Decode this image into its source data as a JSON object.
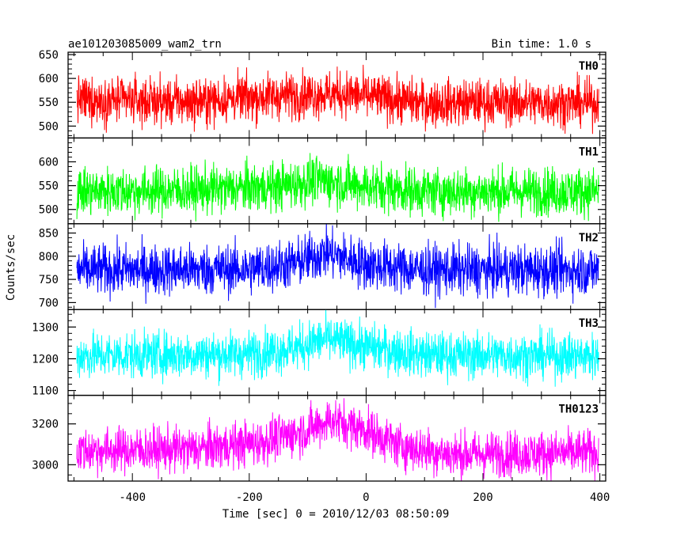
{
  "header": {
    "title": "ae101203085009_wam2_trn",
    "bin_time": "Bin time: 1.0 s"
  },
  "y_axis_label": "Counts/sec",
  "x_axis_label": "Time [sec] 0 = 2010/12/03 08:50:09",
  "chart_data": {
    "type": "line",
    "x_range": [
      -510,
      410
    ],
    "x_ticks": [
      -400,
      -200,
      0,
      200,
      400
    ],
    "x_minor_step": 50,
    "xlabel": "Time [sec] 0 = 2010/12/03 08:50:09",
    "ylabel": "Counts/sec",
    "bin_time_s": 1.0,
    "grid": false,
    "series": [
      {
        "name": "TH0",
        "color": "#ff0000",
        "ylim": [
          475,
          655
        ],
        "y_ticks": [
          500,
          550,
          600,
          650
        ],
        "minor_step": 10,
        "x_start": -495,
        "x_end": 398,
        "baseline": 555,
        "noise_sigma": 24,
        "trend": [
          {
            "x": -495,
            "y": 556
          },
          {
            "x": -300,
            "y": 550
          },
          {
            "x": -200,
            "y": 560
          },
          {
            "x": -100,
            "y": 566
          },
          {
            "x": -40,
            "y": 568
          },
          {
            "x": 100,
            "y": 548
          },
          {
            "x": 200,
            "y": 550
          },
          {
            "x": 398,
            "y": 548
          }
        ]
      },
      {
        "name": "TH1",
        "color": "#00ff00",
        "ylim": [
          470,
          650
        ],
        "y_ticks": [
          500,
          550,
          600
        ],
        "minor_step": 10,
        "x_start": -495,
        "x_end": 398,
        "baseline": 540,
        "noise_sigma": 25,
        "trend": [
          {
            "x": -495,
            "y": 538
          },
          {
            "x": -300,
            "y": 540
          },
          {
            "x": -150,
            "y": 548
          },
          {
            "x": -80,
            "y": 562
          },
          {
            "x": 0,
            "y": 548
          },
          {
            "x": 100,
            "y": 538
          },
          {
            "x": 398,
            "y": 538
          }
        ]
      },
      {
        "name": "TH2",
        "color": "#0000ff",
        "ylim": [
          685,
          870
        ],
        "y_ticks": [
          700,
          750,
          800,
          850
        ],
        "minor_step": 10,
        "x_start": -495,
        "x_end": 398,
        "baseline": 770,
        "noise_sigma": 27,
        "trend": [
          {
            "x": -495,
            "y": 770
          },
          {
            "x": -200,
            "y": 772
          },
          {
            "x": -120,
            "y": 785
          },
          {
            "x": -70,
            "y": 808
          },
          {
            "x": 0,
            "y": 782
          },
          {
            "x": 100,
            "y": 770
          },
          {
            "x": 398,
            "y": 770
          }
        ]
      },
      {
        "name": "TH3",
        "color": "#00ffff",
        "ylim": [
          1085,
          1355
        ],
        "y_ticks": [
          1100,
          1200,
          1300
        ],
        "minor_step": 20,
        "x_start": -495,
        "x_end": 398,
        "baseline": 1210,
        "noise_sigma": 36,
        "trend": [
          {
            "x": -495,
            "y": 1210
          },
          {
            "x": -200,
            "y": 1215
          },
          {
            "x": -120,
            "y": 1235
          },
          {
            "x": -70,
            "y": 1262
          },
          {
            "x": 0,
            "y": 1238
          },
          {
            "x": 100,
            "y": 1212
          },
          {
            "x": 398,
            "y": 1208
          }
        ]
      },
      {
        "name": "TH0123",
        "color": "#ff00ff",
        "ylim": [
          2920,
          3340
        ],
        "y_ticks": [
          3000,
          3200
        ],
        "minor_step": 50,
        "x_start": -495,
        "x_end": 398,
        "baseline": 3070,
        "noise_sigma": 55,
        "trend": [
          {
            "x": -495,
            "y": 3070
          },
          {
            "x": -300,
            "y": 3075
          },
          {
            "x": -180,
            "y": 3110
          },
          {
            "x": -100,
            "y": 3170
          },
          {
            "x": -60,
            "y": 3220
          },
          {
            "x": 0,
            "y": 3170
          },
          {
            "x": 60,
            "y": 3090
          },
          {
            "x": 150,
            "y": 3050
          },
          {
            "x": 398,
            "y": 3060
          }
        ]
      }
    ]
  }
}
